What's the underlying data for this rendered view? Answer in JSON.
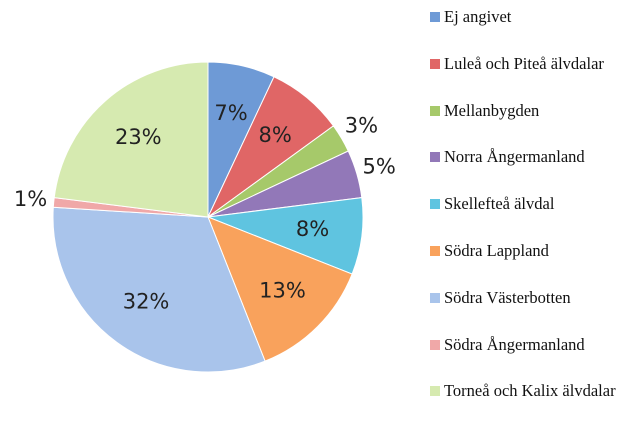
{
  "chart_data": {
    "type": "pie",
    "categories": [
      "Ej angivet",
      "Luleå och Piteå älvdalar",
      "Mellanbygden",
      "Norra Ångermanland",
      "Skellefteå älvdal",
      "Södra Lappland",
      "Södra Västerbotten",
      "Södra Ångermanland",
      "Torneå och Kalix älvdalar"
    ],
    "values": [
      7,
      8,
      3,
      5,
      8,
      13,
      32,
      1,
      23
    ],
    "value_labels": [
      "7%",
      "8%",
      "3%",
      "5%",
      "8%",
      "13%",
      "32%",
      "1%",
      "23%"
    ],
    "colors": [
      "#6e9ad6",
      "#e06666",
      "#a6c96a",
      "#9278b8",
      "#5fc4e0",
      "#f9a25c",
      "#a9c4eb",
      "#f0a8a8",
      "#d6eab0"
    ]
  }
}
